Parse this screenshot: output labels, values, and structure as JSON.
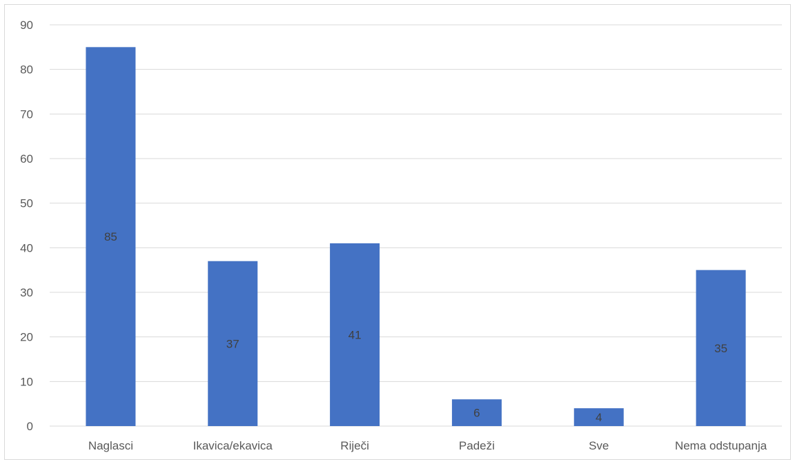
{
  "chart_data": {
    "type": "bar",
    "categories": [
      "Naglasci",
      "Ikavica/ekavica",
      "Riječi",
      "Padeži",
      "Sve",
      "Nema odstupanja"
    ],
    "values": [
      85,
      37,
      41,
      6,
      4,
      35
    ],
    "title": "",
    "xlabel": "",
    "ylabel": "",
    "ylim": [
      0,
      90
    ],
    "yticks": [
      0,
      10,
      20,
      30,
      40,
      50,
      60,
      70,
      80,
      90
    ],
    "grid": true,
    "legend": "none",
    "data_labels": true,
    "colors": {
      "bar": "#4472c4",
      "grid": "#d9d9d9",
      "axis_text": "#595959",
      "label_text": "#404040"
    }
  }
}
